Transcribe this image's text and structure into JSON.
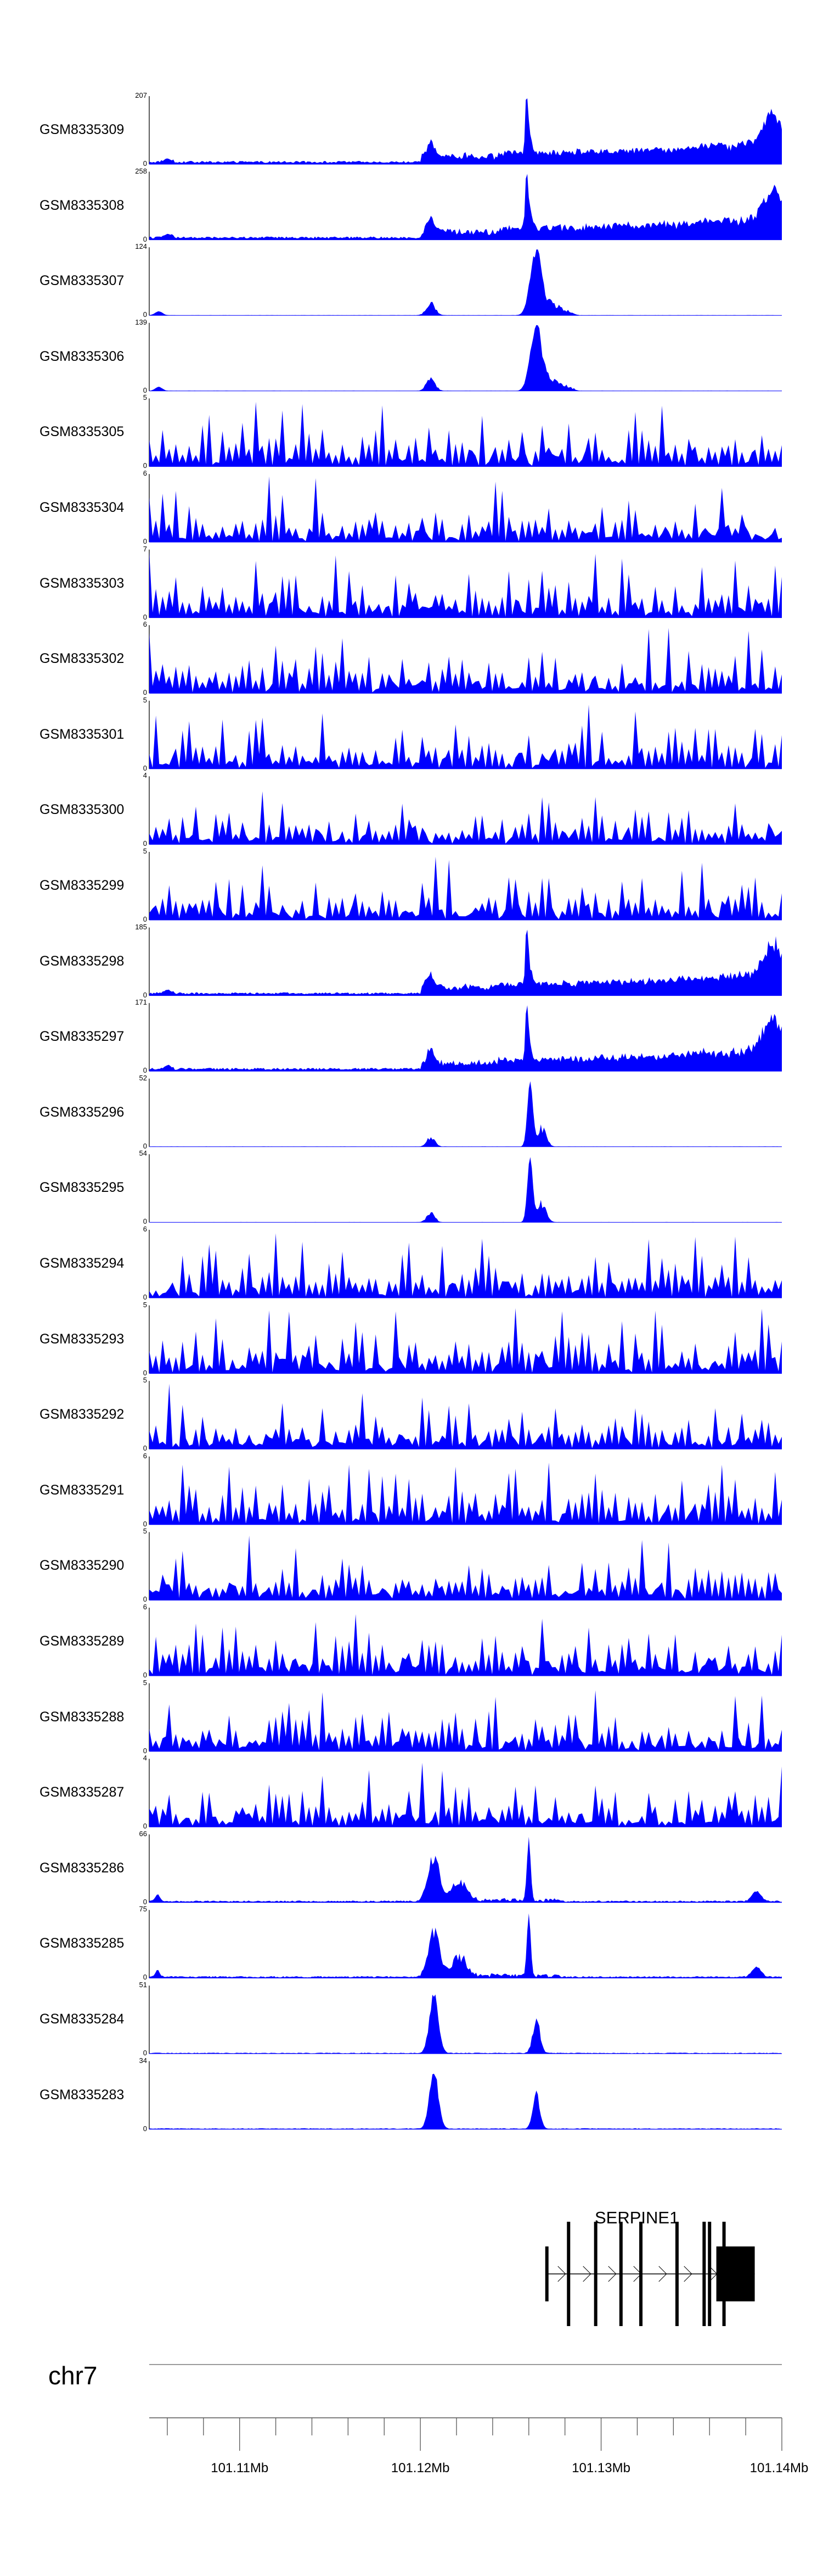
{
  "chart_data": {
    "type": "area",
    "title": "",
    "xlabel": "",
    "ylabel": "",
    "chromosome": "chr7",
    "x_range_mb": [
      101.105,
      101.14
    ],
    "x_tick_labels": [
      "101.11Mb",
      "101.12Mb",
      "101.13Mb",
      "101.14Mb"
    ],
    "x_tick_values_mb": [
      101.11,
      101.12,
      101.13,
      101.14
    ],
    "series_color": "#0000ff",
    "series": [
      {
        "name": "GSM8335309",
        "ymax": 207,
        "profile": "chip_rising"
      },
      {
        "name": "GSM8335308",
        "ymax": 258,
        "profile": "chip_rising"
      },
      {
        "name": "GSM8335307",
        "ymax": 124,
        "profile": "promoter_broad"
      },
      {
        "name": "GSM8335306",
        "ymax": 139,
        "profile": "promoter_broad"
      },
      {
        "name": "GSM8335305",
        "ymax": 5,
        "profile": "noise"
      },
      {
        "name": "GSM8335304",
        "ymax": 6,
        "profile": "noise"
      },
      {
        "name": "GSM8335303",
        "ymax": 7,
        "profile": "noise"
      },
      {
        "name": "GSM8335302",
        "ymax": 6,
        "profile": "noise"
      },
      {
        "name": "GSM8335301",
        "ymax": 5,
        "profile": "noise"
      },
      {
        "name": "GSM8335300",
        "ymax": 4,
        "profile": "noise"
      },
      {
        "name": "GSM8335299",
        "ymax": 5,
        "profile": "noise"
      },
      {
        "name": "GSM8335298",
        "ymax": 185,
        "profile": "chip_rising"
      },
      {
        "name": "GSM8335297",
        "ymax": 171,
        "profile": "chip_rising"
      },
      {
        "name": "GSM8335296",
        "ymax": 52,
        "profile": "promoter_sharp"
      },
      {
        "name": "GSM8335295",
        "ymax": 54,
        "profile": "promoter_sharp"
      },
      {
        "name": "GSM8335294",
        "ymax": 6,
        "profile": "noise"
      },
      {
        "name": "GSM8335293",
        "ymax": 5,
        "profile": "noise"
      },
      {
        "name": "GSM8335292",
        "ymax": 5,
        "profile": "noise"
      },
      {
        "name": "GSM8335291",
        "ymax": 6,
        "profile": "noise"
      },
      {
        "name": "GSM8335290",
        "ymax": 5,
        "profile": "noise"
      },
      {
        "name": "GSM8335289",
        "ymax": 6,
        "profile": "noise"
      },
      {
        "name": "GSM8335288",
        "ymax": 5,
        "profile": "noise"
      },
      {
        "name": "GSM8335287",
        "ymax": 4,
        "profile": "noise"
      },
      {
        "name": "GSM8335286",
        "ymax": 66,
        "profile": "enhancer_promoter"
      },
      {
        "name": "GSM8335285",
        "ymax": 75,
        "profile": "enhancer_promoter"
      },
      {
        "name": "GSM8335284",
        "ymax": 51,
        "profile": "enhancer_strong"
      },
      {
        "name": "GSM8335283",
        "ymax": 34,
        "profile": "enhancer_strong"
      }
    ],
    "zero_label": "0",
    "gene": {
      "name": "SERPINE1",
      "start_mb": 101.127,
      "end_mb": 101.1385,
      "strand": "+",
      "exons_mb": [
        101.127,
        101.1282,
        101.1297,
        101.1311,
        101.1322,
        101.1342,
        101.1357,
        101.136,
        101.1368
      ]
    }
  }
}
